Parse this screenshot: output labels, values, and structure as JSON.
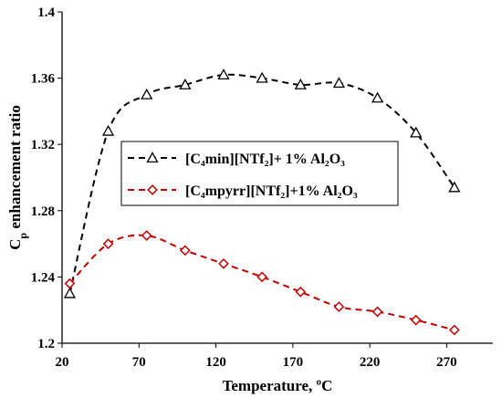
{
  "chart_data": {
    "type": "line",
    "xlabel": "Temperature, ºC",
    "ylabel": "Cp enhancement ratio",
    "ylabel_main": "C",
    "ylabel_sub": "p",
    "ylabel_rest": " enhancement ratio",
    "xlim": [
      20,
      300
    ],
    "ylim": [
      1.2,
      1.4
    ],
    "xticks": [
      "20",
      "70",
      "120",
      "170",
      "220",
      "270"
    ],
    "xtick_values": [
      20,
      70,
      120,
      170,
      220,
      270
    ],
    "yticks": [
      "1.2",
      "1.24",
      "1.28",
      "1.32",
      "1.36",
      "1.4"
    ],
    "ytick_values": [
      1.2,
      1.24,
      1.28,
      1.32,
      1.36,
      1.4
    ],
    "grid": false,
    "legend_position": "center-left",
    "series": [
      {
        "name": "[C₄min][NTf₂]+ 1% Al₂O₃",
        "color": "#000000",
        "marker": "triangle",
        "line_style": "dashed",
        "x": [
          25,
          50,
          75,
          100,
          125,
          150,
          175,
          200,
          225,
          250,
          275
        ],
        "y": [
          1.23,
          1.328,
          1.35,
          1.356,
          1.362,
          1.36,
          1.356,
          1.357,
          1.348,
          1.327,
          1.294
        ]
      },
      {
        "name": "[C₄mpyrr][NTf₂]+1% Al₂O₃",
        "color": "#c00000",
        "marker": "diamond",
        "line_style": "dashed",
        "x": [
          25,
          50,
          75,
          100,
          125,
          150,
          175,
          200,
          225,
          250,
          275
        ],
        "y": [
          1.236,
          1.26,
          1.265,
          1.256,
          1.248,
          1.24,
          1.231,
          1.222,
          1.219,
          1.214,
          1.208
        ]
      }
    ]
  }
}
